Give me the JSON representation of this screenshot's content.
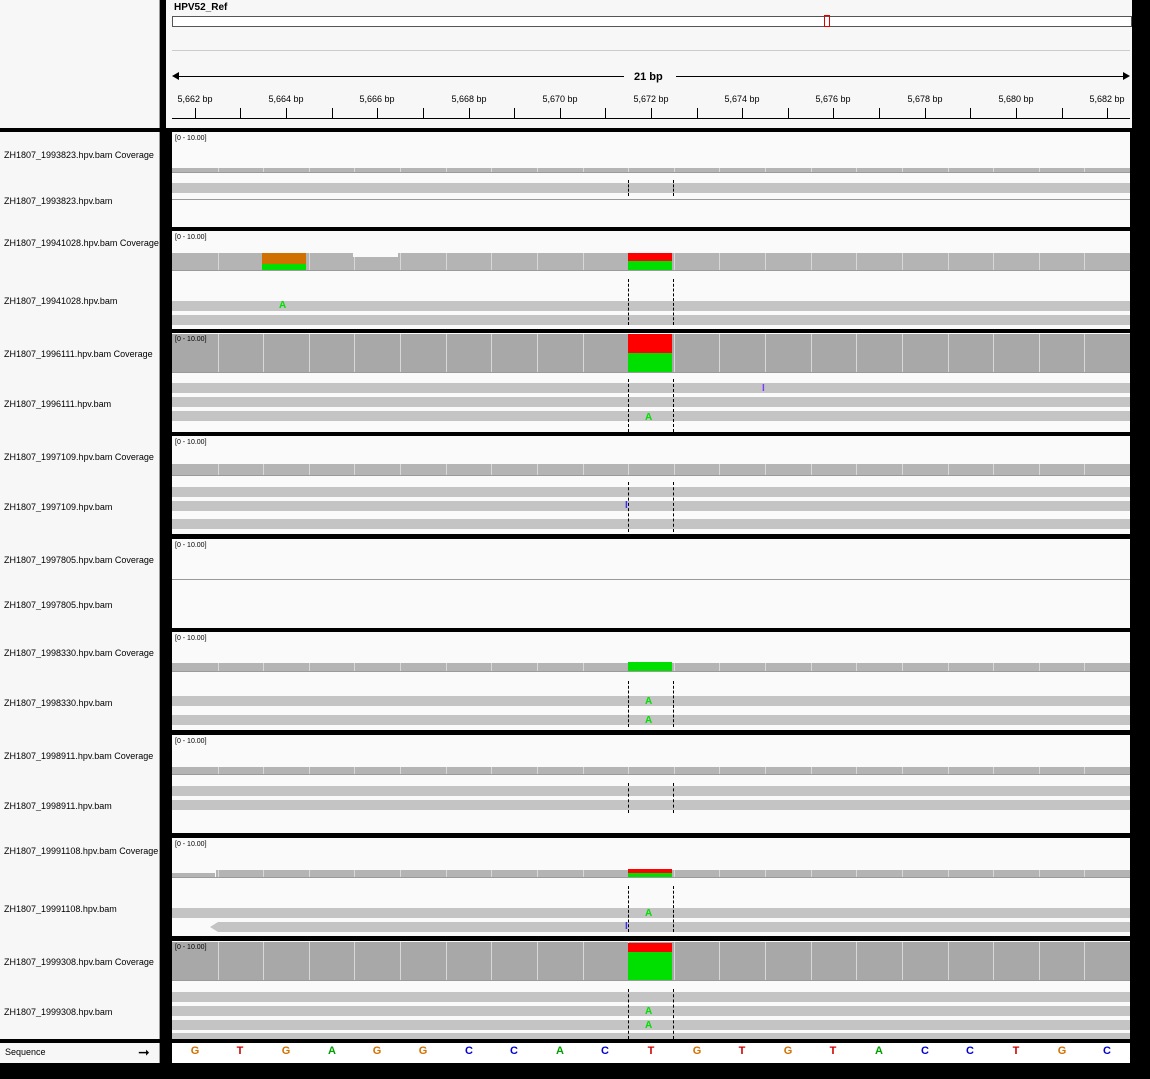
{
  "reference": {
    "chromosome": "HPV52_Ref",
    "span_label": "21 bp",
    "ticks": [
      "5,662 bp",
      "5,664 bp",
      "5,666 bp",
      "5,668 bp",
      "5,670 bp",
      "5,672 bp",
      "5,674 bp",
      "5,676 bp",
      "5,678 bp",
      "5,680 bp",
      "5,682 bp"
    ]
  },
  "tracks": [
    {
      "coverage_label": "ZH1807_1993823.hpv.bam Coverage",
      "reads_label": "ZH1807_1993823.hpv.bam",
      "range": "[0 - 10.00]"
    },
    {
      "coverage_label": "ZH1807_19941028.hpv.bam Coverage",
      "reads_label": "ZH1807_19941028.hpv.bam",
      "range": "[0 - 10.00]",
      "bases": [
        "A"
      ]
    },
    {
      "coverage_label": "ZH1807_1996111.hpv.bam Coverage",
      "reads_label": "ZH1807_1996111.hpv.bam",
      "range": "[0 - 10.00]",
      "bases": [
        "A"
      ],
      "insertions": [
        "I"
      ]
    },
    {
      "coverage_label": "ZH1807_1997109.hpv.bam Coverage",
      "reads_label": "ZH1807_1997109.hpv.bam",
      "range": "[0 - 10.00]",
      "insertions": [
        "I"
      ]
    },
    {
      "coverage_label": "ZH1807_1997805.hpv.bam Coverage",
      "reads_label": "ZH1807_1997805.hpv.bam",
      "range": "[0 - 10.00]"
    },
    {
      "coverage_label": "ZH1807_1998330.hpv.bam Coverage",
      "reads_label": "ZH1807_1998330.hpv.bam",
      "range": "[0 - 10.00]",
      "bases": [
        "A",
        "A"
      ]
    },
    {
      "coverage_label": "ZH1807_1998911.hpv.bam Coverage",
      "reads_label": "ZH1807_1998911.hpv.bam",
      "range": "[0 - 10.00]"
    },
    {
      "coverage_label": "ZH1807_19991108.hpv.bam Coverage",
      "reads_label": "ZH1807_19991108.hpv.bam",
      "range": "[0 - 10.00]",
      "bases": [
        "A"
      ],
      "insertions": [
        "I"
      ]
    },
    {
      "coverage_label": "ZH1807_1999308.hpv.bam Coverage",
      "reads_label": "ZH1807_1999308.hpv.bam",
      "range": "[0 - 10.00]",
      "bases": [
        "A",
        "A"
      ]
    }
  ],
  "sequence": {
    "label": "Sequence",
    "bases": [
      "G",
      "T",
      "G",
      "A",
      "G",
      "G",
      "C",
      "C",
      "A",
      "C",
      "T",
      "G",
      "T",
      "G",
      "T",
      "A",
      "C",
      "C",
      "T",
      "G",
      "C"
    ]
  },
  "colors": {
    "A": "#00a000",
    "C": "#0000d0",
    "G": "#d07000",
    "T": "#d00000",
    "mismatch_A": "#00e000",
    "mismatch_T": "#ff0000",
    "coverage": "#b4b4b4",
    "read": "#c4c4c4",
    "insertion": "#7a3cff"
  }
}
